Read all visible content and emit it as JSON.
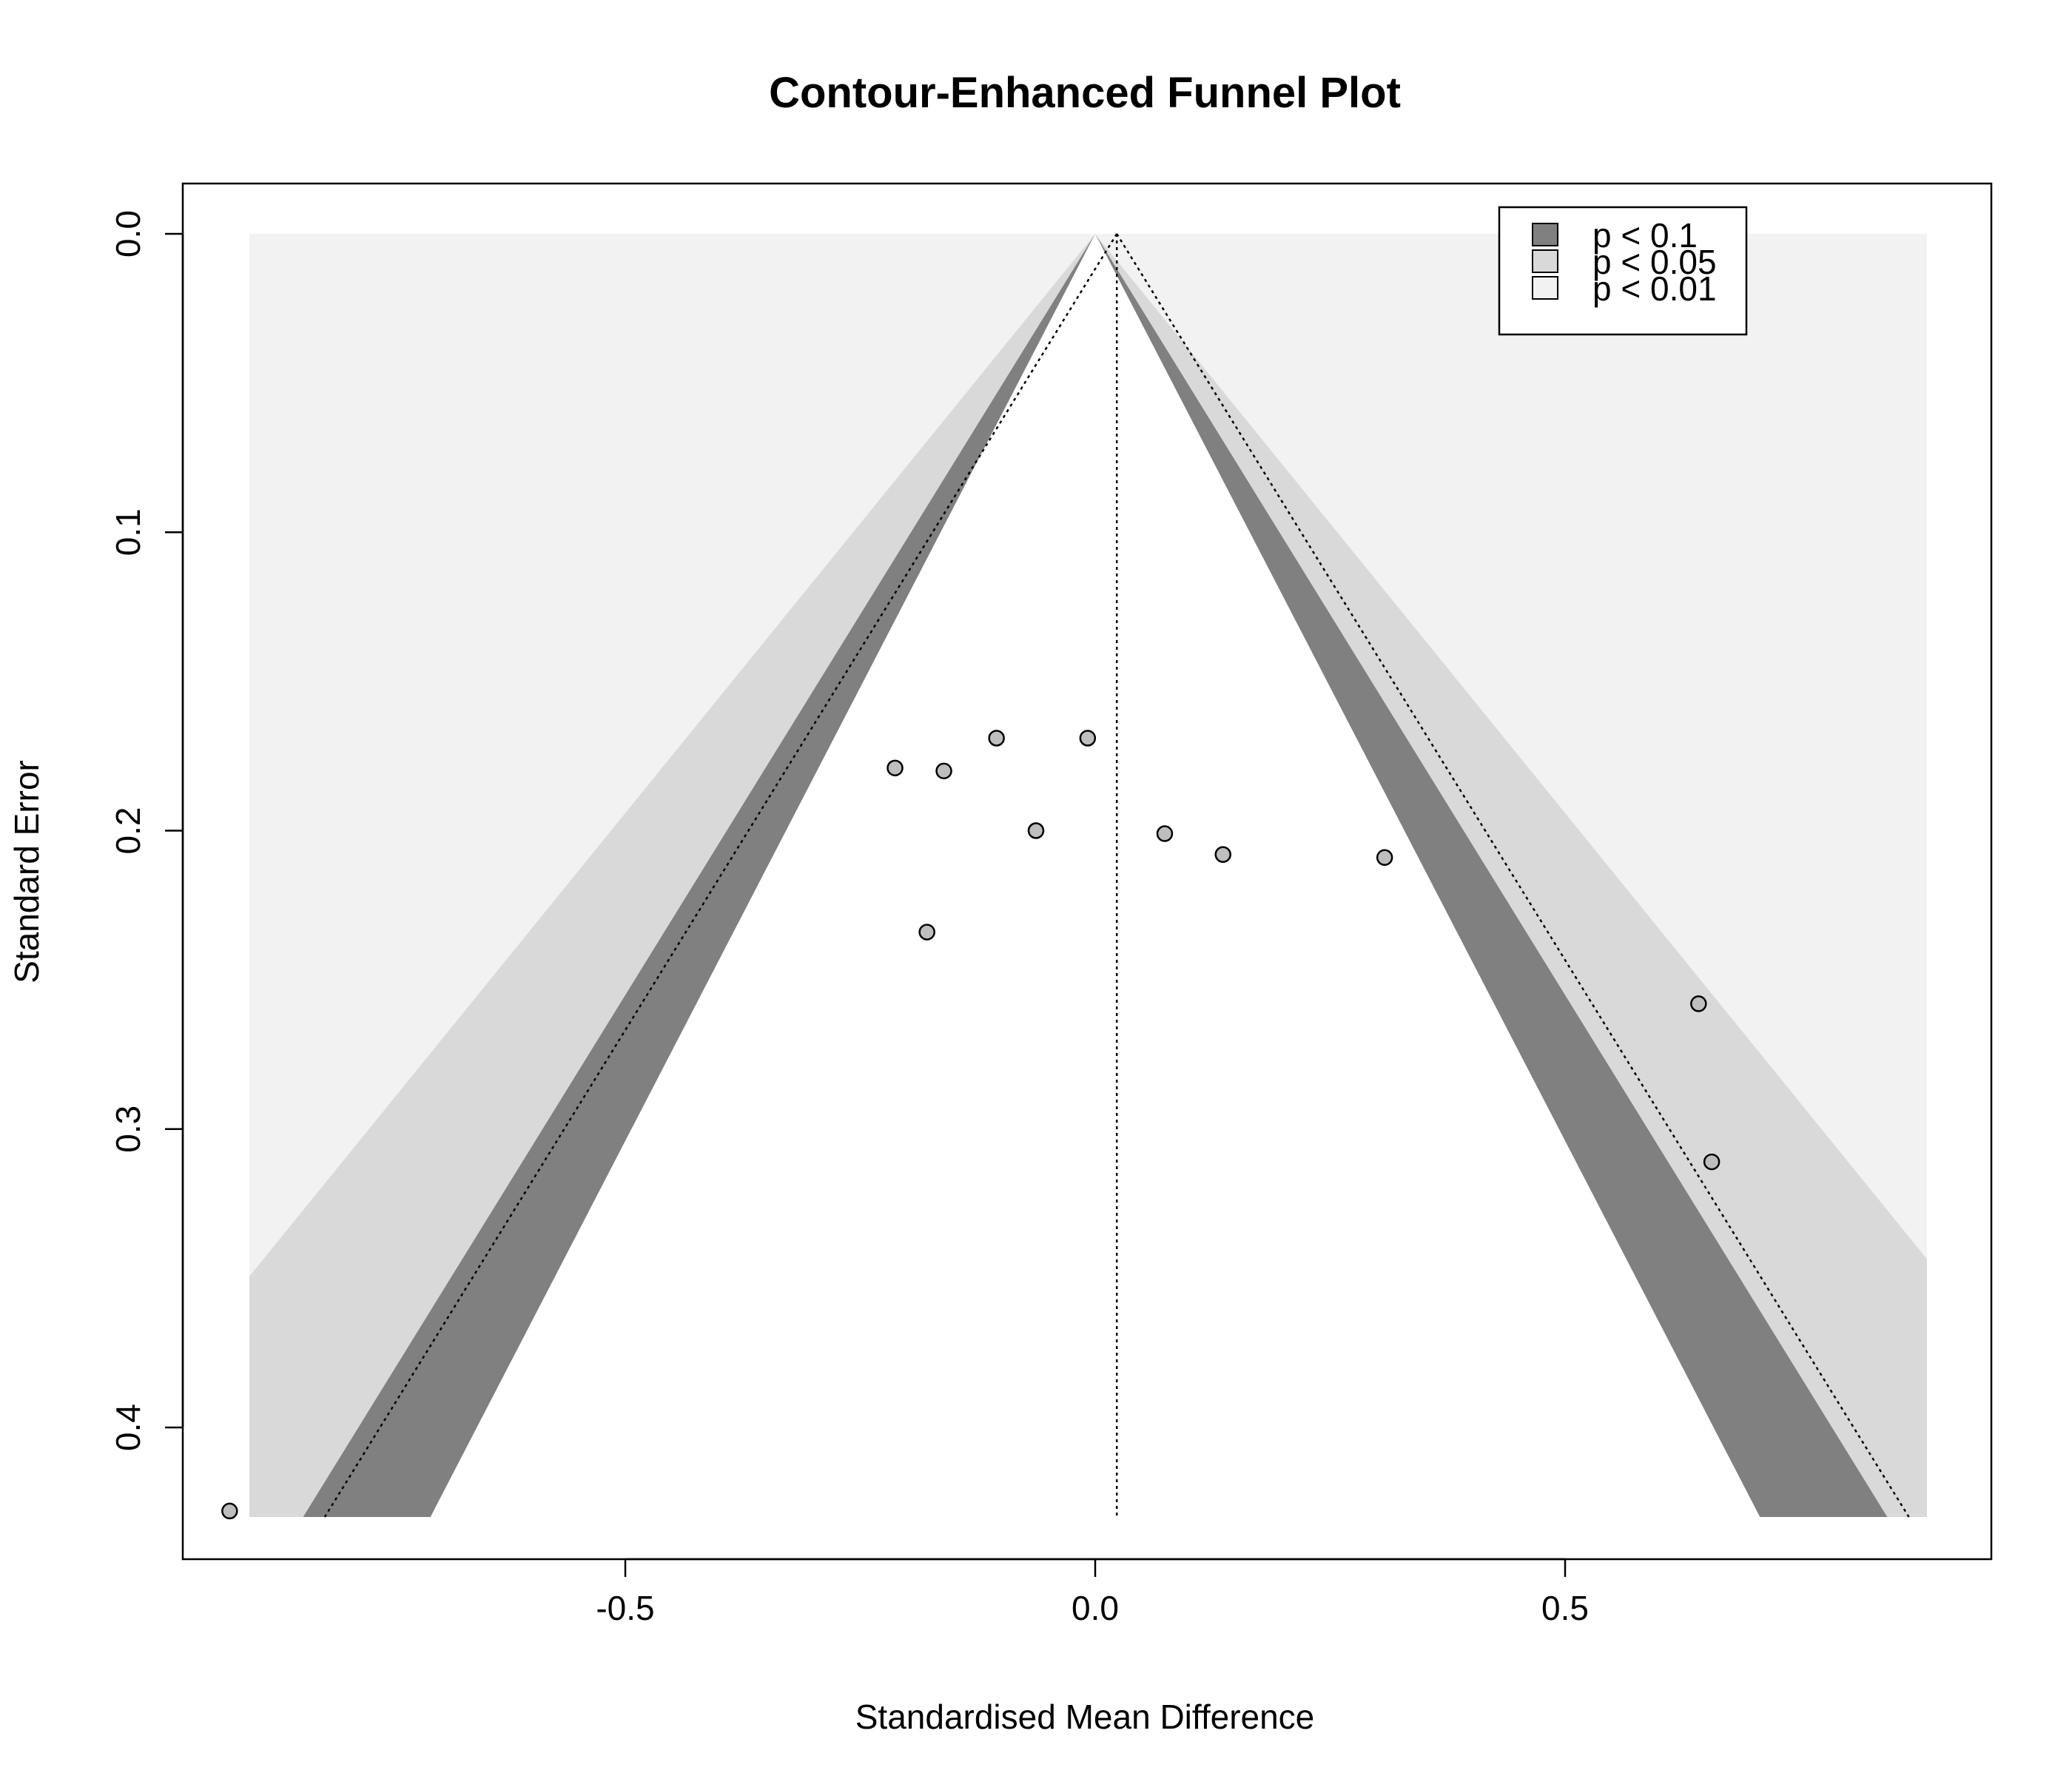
{
  "chart_data": {
    "type": "scatter",
    "title": "Contour-Enhanced Funnel Plot",
    "xlabel": "Standardised Mean Difference",
    "ylabel": "Standard Error",
    "xlim": [
      -0.97,
      0.96
    ],
    "ylim": [
      0.0,
      0.43
    ],
    "y_reversed": true,
    "x_ticks": [
      -0.5,
      0.0,
      0.5
    ],
    "x_tick_labels": [
      "-0.5",
      "0.0",
      "0.5"
    ],
    "y_ticks": [
      0.0,
      0.1,
      0.2,
      0.3,
      0.4
    ],
    "y_tick_labels": [
      "0.0",
      "0.1",
      "0.2",
      "0.3",
      "0.4"
    ],
    "pooled_estimate": 0.023,
    "contour_z": [
      1.645,
      1.96,
      2.576
    ],
    "legend": {
      "position": "top-right",
      "entries": [
        {
          "label": "p < 0.1",
          "color": "#808080"
        },
        {
          "label": "p < 0.05",
          "color": "#d9d9d9"
        },
        {
          "label": "p < 0.01",
          "color": "#f2f2f2"
        }
      ]
    },
    "colors": {
      "p_lt_0_1": "#808080",
      "p_lt_0_05": "#d9d9d9",
      "p_lt_0_01": "#f2f2f2",
      "nonsignificant": "#ffffff",
      "point_fill": "#bebebe",
      "point_stroke": "#000000"
    },
    "points": [
      {
        "x": -0.213,
        "y": 0.179
      },
      {
        "x": -0.161,
        "y": 0.18
      },
      {
        "x": -0.105,
        "y": 0.169
      },
      {
        "x": -0.008,
        "y": 0.169
      },
      {
        "x": -0.063,
        "y": 0.2
      },
      {
        "x": 0.074,
        "y": 0.201
      },
      {
        "x": 0.136,
        "y": 0.208
      },
      {
        "x": 0.308,
        "y": 0.209
      },
      {
        "x": -0.179,
        "y": 0.234
      },
      {
        "x": 0.642,
        "y": 0.258
      },
      {
        "x": 0.656,
        "y": 0.311
      },
      {
        "x": -0.921,
        "y": 0.428
      }
    ]
  }
}
